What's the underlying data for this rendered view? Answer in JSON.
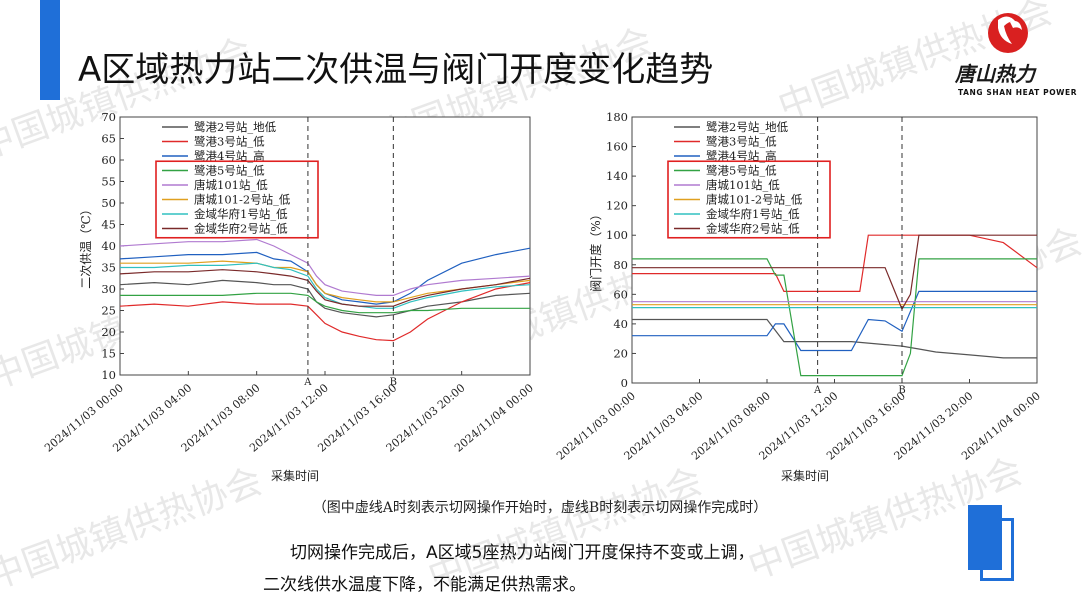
{
  "slide": {
    "title": "A区域热力站二次供温与阀门开度变化趋势",
    "caption": "（图中虚线A时刻表示切网操作开始时，虚线B时刻表示切网操作完成时）",
    "conclusion_line1": "切网操作完成后，A区域5座热力站阀门开度保持不变或上调，",
    "conclusion_line2": "二次线供水温度下降，不能满足供热需求。",
    "accent_color": "#1f6fd8"
  },
  "logo": {
    "name": "唐山热力",
    "sub": "TANG SHAN HEAT POWER"
  },
  "watermark": "中国城镇供热协会",
  "chart_data": [
    {
      "type": "line",
      "ylabel": "二次供温（℃）",
      "xlabel": "采集时间",
      "ylim": [
        10,
        70
      ],
      "yticks": [
        "10",
        "15",
        "20",
        "25",
        "30",
        "35",
        "40",
        "45",
        "50",
        "55",
        "60",
        "65",
        "70"
      ],
      "xticks": [
        "2024/11/03 00:00",
        "2024/11/03 04:00",
        "2024/11/03 08:00",
        "2024/11/03 12:00",
        "2024/11/03 16:00",
        "2024/11/03 20:00",
        "2024/11/04 00:00"
      ],
      "xlim_hours": [
        0,
        24
      ],
      "markers": [
        {
          "label": "A",
          "x_hours": 11
        },
        {
          "label": "B",
          "x_hours": 16
        }
      ],
      "legend_position": "top-left",
      "series": [
        {
          "name": "鹭港2号站_地低",
          "color": "#555555",
          "x": [
            0,
            2,
            4,
            6,
            8,
            9,
            10,
            11,
            11.5,
            12,
            13,
            14,
            15,
            16,
            17,
            18,
            20,
            22,
            24
          ],
          "y": [
            31,
            31.5,
            31,
            32,
            31.5,
            31,
            31,
            30,
            27,
            25.5,
            24.5,
            24,
            23.5,
            24,
            25,
            26,
            27,
            28.5,
            29
          ]
        },
        {
          "name": "鹭港3号站_低",
          "color": "#e02a2a",
          "x": [
            0,
            2,
            4,
            6,
            8,
            9,
            10,
            11,
            11.5,
            12,
            13,
            14,
            15,
            16,
            17,
            18,
            20,
            22,
            24
          ],
          "y": [
            26,
            26.5,
            26,
            27,
            26.5,
            26.5,
            26.5,
            26,
            24,
            22,
            20,
            19,
            18.2,
            18,
            20,
            23,
            27,
            30,
            31.5
          ]
        },
        {
          "name": "鹭港4号站_高",
          "color": "#2060c0",
          "x": [
            0,
            2,
            4,
            6,
            8,
            9,
            10,
            11,
            11.5,
            12,
            13,
            14,
            15,
            16,
            17,
            18,
            20,
            22,
            24
          ],
          "y": [
            37,
            37.5,
            38,
            38,
            38.5,
            37,
            36.5,
            34,
            31,
            29,
            27.5,
            27,
            26.5,
            27,
            29,
            32,
            36,
            38,
            39.5
          ]
        },
        {
          "name": "鹭港5号站_低",
          "color": "#33a244",
          "x": [
            0,
            2,
            4,
            6,
            8,
            9,
            10,
            11,
            11.5,
            12,
            13,
            14,
            15,
            16,
            17,
            18,
            20,
            22,
            24
          ],
          "y": [
            28.5,
            28.5,
            28.5,
            28.5,
            29,
            29,
            29,
            28.5,
            27,
            26,
            25,
            24.5,
            24.5,
            24.5,
            25,
            25,
            25.5,
            25.5,
            25.5
          ]
        },
        {
          "name": "唐城101站_低",
          "color": "#b07ad0",
          "x": [
            0,
            2,
            4,
            6,
            8,
            9,
            10,
            11,
            11.5,
            12,
            13,
            14,
            15,
            16,
            17,
            18,
            20,
            22,
            24
          ],
          "y": [
            40,
            40.5,
            41,
            41,
            41.5,
            40,
            38,
            36,
            33,
            31,
            29.5,
            29,
            28.5,
            28.5,
            30,
            31,
            32,
            32.5,
            33
          ]
        },
        {
          "name": "唐城101-2号站_低",
          "color": "#e0a020",
          "x": [
            0,
            2,
            4,
            6,
            8,
            9,
            10,
            11,
            11.5,
            12,
            13,
            14,
            15,
            16,
            17,
            18,
            20,
            22,
            24
          ],
          "y": [
            36,
            36,
            36,
            36.5,
            36,
            35,
            35,
            34,
            31,
            29,
            28,
            27.5,
            27,
            27,
            28,
            29,
            30,
            31,
            32
          ]
        },
        {
          "name": "金域华府1号站_低",
          "color": "#30c0c0",
          "x": [
            0,
            2,
            4,
            6,
            8,
            9,
            10,
            11,
            11.5,
            12,
            13,
            14,
            15,
            16,
            17,
            18,
            20,
            22,
            24
          ],
          "y": [
            35,
            35,
            35.5,
            35.5,
            36,
            35,
            34.5,
            33,
            30,
            28,
            26.5,
            26,
            25.5,
            25.5,
            27,
            28,
            29.5,
            30.5,
            31
          ]
        },
        {
          "name": "金域华府2号站_低",
          "color": "#7a2a2a",
          "x": [
            0,
            2,
            4,
            6,
            8,
            9,
            10,
            11,
            11.5,
            12,
            13,
            14,
            15,
            16,
            17,
            18,
            20,
            22,
            24
          ],
          "y": [
            33.5,
            34,
            34,
            34.5,
            34,
            33.5,
            33,
            32,
            29.5,
            27.5,
            26.5,
            26,
            26,
            26,
            27.5,
            28.5,
            30,
            31,
            32.5
          ]
        }
      ]
    },
    {
      "type": "line",
      "ylabel": "阀门开度（%）",
      "xlabel": "采集时间",
      "ylim": [
        0,
        180
      ],
      "yticks": [
        "0",
        "20",
        "40",
        "60",
        "80",
        "100",
        "120",
        "140",
        "160",
        "180"
      ],
      "xticks": [
        "2024/11/03 00:00",
        "2024/11/03 04:00",
        "2024/11/03 08:00",
        "2024/11/03 12:00",
        "2024/11/03 16:00",
        "2024/11/03 20:00",
        "2024/11/04 00:00"
      ],
      "xlim_hours": [
        0,
        24
      ],
      "markers": [
        {
          "label": "A",
          "x_hours": 11
        },
        {
          "label": "B",
          "x_hours": 16
        }
      ],
      "legend_position": "top-left",
      "series": [
        {
          "name": "鹭港2号站_地低",
          "color": "#555555",
          "x": [
            0,
            4,
            8,
            9,
            9.5,
            10,
            11,
            12,
            13,
            14,
            15,
            16,
            17,
            18,
            20,
            22,
            24
          ],
          "y": [
            43,
            43,
            43,
            28,
            28,
            28,
            28,
            28,
            28,
            27,
            26,
            25,
            23,
            21,
            19,
            17,
            17
          ]
        },
        {
          "name": "鹭港3号站_低",
          "color": "#e02a2a",
          "x": [
            0,
            8.5,
            9,
            10,
            11,
            12,
            13,
            13.5,
            14,
            15,
            16,
            17,
            18,
            20,
            22,
            24
          ],
          "y": [
            74,
            74,
            62,
            62,
            62,
            62,
            62,
            62,
            100,
            100,
            100,
            100,
            100,
            100,
            95,
            78
          ]
        },
        {
          "name": "鹭港4号站_高",
          "color": "#2060c0",
          "x": [
            0,
            8,
            8.5,
            9,
            10,
            11,
            12,
            13,
            14,
            15,
            16,
            17,
            18,
            20,
            22,
            24
          ],
          "y": [
            32,
            32,
            40,
            40,
            22,
            22,
            22,
            22,
            43,
            42,
            35,
            62,
            62,
            62,
            62,
            62
          ]
        },
        {
          "name": "鹭港5号站_低",
          "color": "#33a244",
          "x": [
            0,
            8,
            8.5,
            9,
            10,
            11,
            12,
            13,
            14,
            15,
            16,
            16.5,
            17,
            18,
            20,
            22,
            24
          ],
          "y": [
            84,
            84,
            73,
            73,
            5,
            5,
            5,
            5,
            5,
            5,
            5,
            20,
            84,
            84,
            84,
            84,
            84
          ]
        },
        {
          "name": "唐城101站_低",
          "color": "#b07ad0",
          "x": [
            0,
            24
          ],
          "y": [
            55,
            55
          ]
        },
        {
          "name": "唐城101-2号站_低",
          "color": "#e0a020",
          "x": [
            0,
            24
          ],
          "y": [
            53,
            53
          ]
        },
        {
          "name": "金域华府1号站_低",
          "color": "#30c0c0",
          "x": [
            0,
            24
          ],
          "y": [
            51,
            51
          ]
        },
        {
          "name": "金域华府2号站_低",
          "color": "#7a2a2a",
          "x": [
            0,
            8,
            9,
            10,
            11,
            12,
            13,
            14,
            15,
            16,
            16.5,
            17,
            18,
            20,
            22,
            24
          ],
          "y": [
            78,
            78,
            78,
            78,
            78,
            78,
            78,
            78,
            78,
            50,
            60,
            100,
            100,
            100,
            100,
            100
          ]
        }
      ]
    }
  ]
}
